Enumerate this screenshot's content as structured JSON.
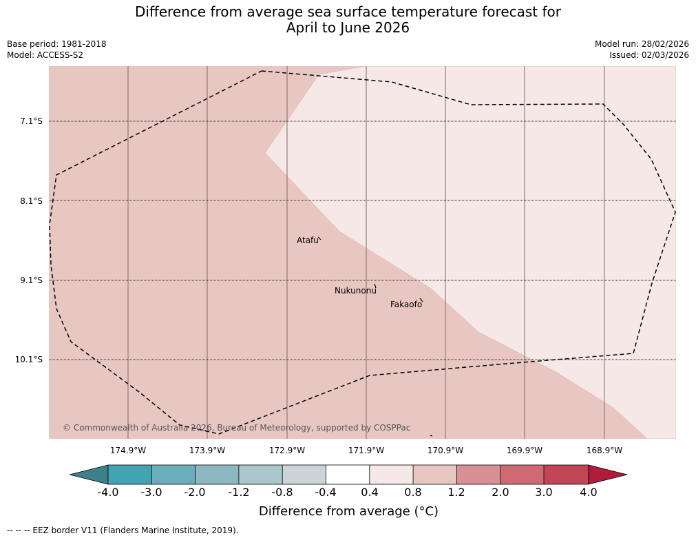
{
  "title_line1": "Difference from average sea surface temperature forecast for",
  "title_line2": "April to June 2026",
  "meta": {
    "base_period": "Base period: 1981-2018",
    "model": "Model: ACCESS-S2",
    "model_run": "Model run: 28/02/2026",
    "issued": "Issued: 02/03/2026"
  },
  "map": {
    "latitude_labels": [
      "7.1°S",
      "8.1°S",
      "9.1°S",
      "10.1°S"
    ],
    "longitude_labels": [
      "174.9°W",
      "173.9°W",
      "172.9°W",
      "171.9°W",
      "170.9°W",
      "169.9°W",
      "168.9°W"
    ],
    "places": [
      "Atafu",
      "Nukunonu",
      "Fakaofo"
    ],
    "copyright": "© Commonwealth of Australia 2026, Bureau of Meteorology, supported by COSPPac",
    "colors": {
      "warm_0_8_1_2": "#e8c7c3",
      "warm_0_4_0_8": "#f5e8e6"
    }
  },
  "colorbar": {
    "ticks": [
      "-4.0",
      "-3.0",
      "-2.0",
      "-1.2",
      "-0.8",
      "-0.4",
      "0.4",
      "0.8",
      "1.2",
      "2.0",
      "3.0",
      "4.0"
    ],
    "colors": [
      "#3d7f8a",
      "#44a3b3",
      "#6aaebc",
      "#8db8c2",
      "#aac7cc",
      "#cbd5d8",
      "#ffffff",
      "#f5e8e6",
      "#e8c7c3",
      "#d88f96",
      "#cf6a75",
      "#c04555",
      "#b01c3c"
    ],
    "title": "Difference from average (°C)"
  },
  "footer": "--  --  -- EEZ border V11 (Flanders Marine Institute, 2019)."
}
